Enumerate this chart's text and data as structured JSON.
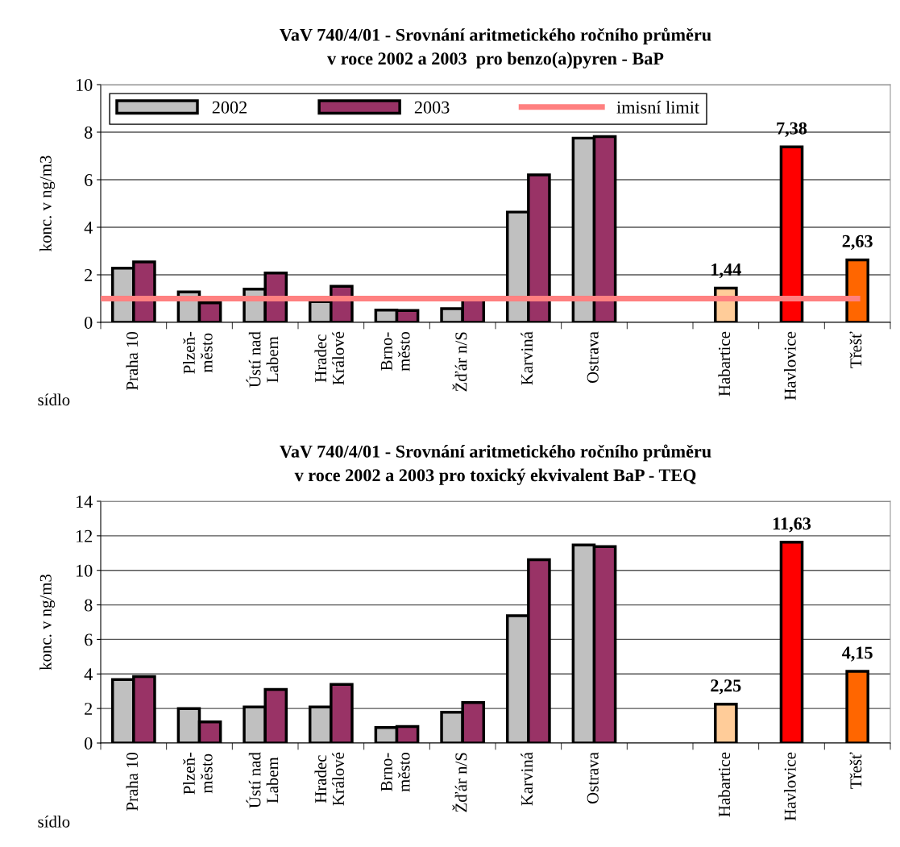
{
  "chart_data": [
    {
      "type": "bar",
      "title": "VaV 740/4/01 - Srovnání aritmetického ročního průměru\nv roce 2002 a 2003  pro benzo(a)pyren - BaP",
      "xlabel": "sídlo",
      "ylabel": "konc. v ng/m3",
      "categories": [
        "Praha 10",
        "Plzeň-\nměsto",
        "Ústí nad\nLabem",
        "Hradec\nKrálové",
        "Brno-\nměsto",
        "Žďár n/S",
        "Karviná",
        "Ostrava",
        null,
        "Habartice",
        "Havlovice",
        "Třešť"
      ],
      "series": [
        {
          "name": "2002",
          "color": "#c0c0c0",
          "values": [
            2.28,
            1.28,
            1.4,
            0.87,
            0.52,
            0.58,
            4.64,
            7.75,
            null,
            null,
            null,
            null
          ]
        },
        {
          "name": "2003",
          "color": "#993366",
          "values": [
            2.54,
            0.82,
            2.08,
            1.52,
            0.5,
            1.0,
            6.2,
            7.81,
            null,
            null,
            null,
            null
          ]
        },
        {
          "colors": [
            "#ffcc99",
            "#ffcc99",
            "#ffcc99",
            "#ffcc99",
            "#ffcc99",
            "#ffcc99",
            "#ffcc99",
            "#ffcc99",
            "#ffcc99",
            "#ffcc99",
            "#ff0000",
            "#ff6600"
          ],
          "values": [
            null,
            null,
            null,
            null,
            null,
            null,
            null,
            null,
            null,
            1.44,
            7.38,
            2.63
          ],
          "value_labels": [
            null,
            null,
            null,
            null,
            null,
            null,
            null,
            null,
            null,
            "1,44",
            "7,38",
            "2,63"
          ]
        }
      ],
      "ref_lines": [
        {
          "axis": "y",
          "value": 1,
          "label": "imisní limit",
          "color": "#ff8080"
        }
      ],
      "ylim": [
        0,
        10
      ],
      "yticks": [
        0,
        2,
        4,
        6,
        8,
        10
      ],
      "grid": "y",
      "legend": "top left"
    },
    {
      "type": "bar",
      "title": "VaV 740/4/01 - Srovnání aritmetického ročního průměru\nv roce 2002 a 2003 pro toxický ekvivalent BaP - TEQ",
      "xlabel": "sídlo",
      "ylabel": "konc. v ng/m3",
      "categories": [
        "Praha 10",
        "Plzeň-\nměsto",
        "Ústí nad\nLabem",
        "Hradec\nKrálové",
        "Brno-\nměsto",
        "Žďár n/S",
        "Karviná",
        "Ostrava",
        null,
        "Habartice",
        "Havlovice",
        "Třešť"
      ],
      "series": [
        {
          "color": "#c0c0c0",
          "values": [
            3.68,
            2.0,
            2.09,
            2.09,
            0.9,
            1.79,
            7.37,
            11.47,
            null,
            null,
            null,
            null
          ]
        },
        {
          "color": "#993366",
          "values": [
            3.85,
            1.22,
            3.1,
            3.4,
            0.96,
            2.35,
            10.62,
            11.37,
            null,
            null,
            null,
            null
          ]
        },
        {
          "colors": [
            "#ffcc99",
            "#ffcc99",
            "#ffcc99",
            "#ffcc99",
            "#ffcc99",
            "#ffcc99",
            "#ffcc99",
            "#ffcc99",
            "#ffcc99",
            "#ffcc99",
            "#ff0000",
            "#ff6600"
          ],
          "values": [
            null,
            null,
            null,
            null,
            null,
            null,
            null,
            null,
            null,
            2.25,
            11.63,
            4.15
          ],
          "value_labels": [
            null,
            null,
            null,
            null,
            null,
            null,
            null,
            null,
            null,
            "2,25",
            "11,63",
            "4,15"
          ]
        }
      ],
      "ylim": [
        0,
        14
      ],
      "yticks": [
        0,
        2,
        4,
        6,
        8,
        10,
        12,
        14
      ],
      "grid": "y"
    }
  ]
}
